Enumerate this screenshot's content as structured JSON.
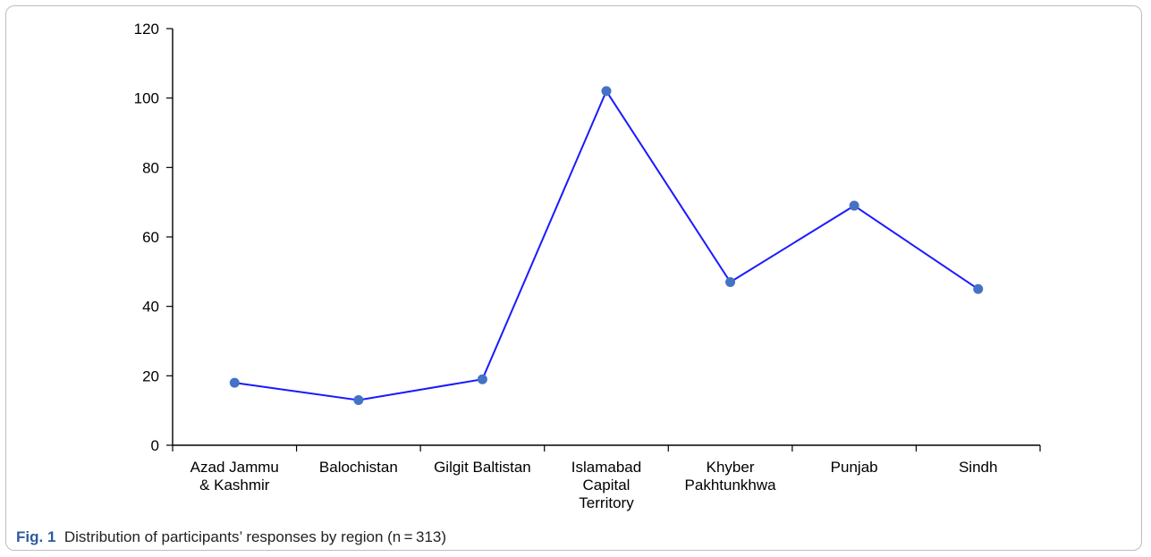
{
  "chart_data": {
    "type": "line",
    "categories": [
      [
        "Azad Jammu",
        "& Kashmir"
      ],
      [
        "Balochistan"
      ],
      [
        "Gilgit Baltistan"
      ],
      [
        "Islamabad",
        "Capital",
        "Territory"
      ],
      [
        "Khyber",
        "Pakhtunkhwa"
      ],
      [
        "Punjab"
      ],
      [
        "Sindh"
      ]
    ],
    "values": [
      18,
      13,
      19,
      102,
      47,
      69,
      45
    ],
    "ylim": [
      0,
      120
    ],
    "yticks": [
      "0",
      "20",
      "40",
      "60",
      "80",
      "100",
      "120"
    ],
    "title": "",
    "xlabel": "",
    "ylabel": "",
    "grid": false,
    "legend": "none",
    "line_color": "#1a1aff",
    "marker_color": "#4472c4"
  },
  "caption": {
    "fig_label": "Fig. 1",
    "text": "Distribution of participants’ responses by region (n = 313)"
  }
}
